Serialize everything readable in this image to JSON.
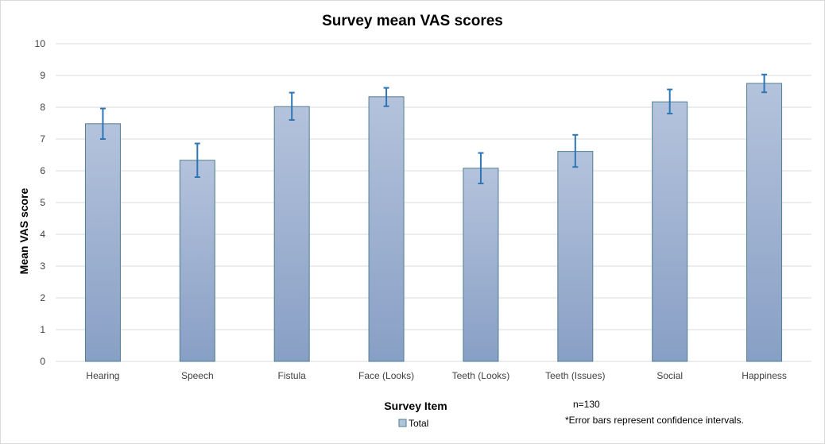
{
  "chart_data": {
    "type": "bar",
    "title": "Survey mean VAS scores",
    "xlabel": "Survey Item",
    "ylabel": "Mean VAS score",
    "categories": [
      "Hearing",
      "Speech",
      "Fistula",
      "Face (Looks)",
      "Teeth (Looks)",
      "Teeth (Issues)",
      "Social",
      "Happiness"
    ],
    "series": [
      {
        "name": "Total",
        "values": [
          7.48,
          6.33,
          8.02,
          8.33,
          6.08,
          6.61,
          8.17,
          8.75
        ],
        "error_low": [
          7.0,
          5.8,
          7.6,
          8.03,
          5.6,
          6.12,
          7.8,
          8.47
        ],
        "error_high": [
          7.96,
          6.86,
          8.46,
          8.61,
          6.56,
          7.13,
          8.56,
          9.03
        ]
      }
    ],
    "ylim": [
      0,
      10
    ],
    "yticks": [
      "0",
      "1",
      "2",
      "3",
      "4",
      "5",
      "6",
      "7",
      "8",
      "9",
      "10"
    ],
    "grid": true,
    "legend": "bottom",
    "annotations": [
      "n=130",
      "*Error bars represent confidence intervals."
    ],
    "colors": {
      "bar_top": "#b4c3dc",
      "bar_bottom": "#889fc5",
      "bar_border": "#4f7f8f",
      "error_bar": "#2e75b6",
      "grid": "#d9d9d9"
    }
  }
}
